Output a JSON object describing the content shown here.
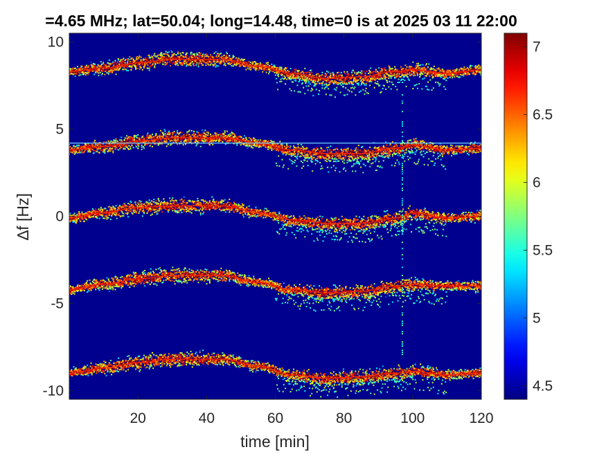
{
  "chart_data": {
    "type": "heatmap",
    "title": "=4.65 MHz;  lat=50.04; long=14.48, time=0 is at 2025 03 11 22:00",
    "xlabel": "time [min]",
    "ylabel": "∆f [Hz]",
    "xlim": [
      0,
      120
    ],
    "ylim": [
      -10.5,
      10.5
    ],
    "xticks": [
      20,
      40,
      60,
      80,
      100,
      120
    ],
    "yticks": [
      -10,
      -5,
      0,
      5,
      10
    ],
    "xtick_labels": [
      "20",
      "40",
      "60",
      "80",
      "100",
      "120"
    ],
    "ytick_labels": [
      "-10",
      "-5",
      "0",
      "5",
      "10"
    ],
    "colorbar": {
      "clim": [
        4.4,
        7.1
      ],
      "ticks": [
        4.5,
        5,
        5.5,
        6,
        6.5,
        7
      ],
      "tick_labels": [
        "4.5",
        "5",
        "5.5",
        "6",
        "6.5",
        "7"
      ],
      "colormap": "jet"
    },
    "background_color": "#00008f",
    "reference_line": {
      "y": 4.2
    },
    "vertical_artifact": {
      "x": 97
    },
    "series": [
      {
        "offset": 8,
        "points": [
          [
            0,
            8.3
          ],
          [
            10,
            8.5
          ],
          [
            20,
            8.8
          ],
          [
            30,
            9.0
          ],
          [
            45,
            9.0
          ],
          [
            55,
            8.6
          ],
          [
            65,
            8.2
          ],
          [
            75,
            7.9
          ],
          [
            85,
            8.0
          ],
          [
            95,
            8.3
          ],
          [
            100,
            8.4
          ],
          [
            110,
            8.2
          ],
          [
            120,
            8.4
          ]
        ]
      },
      {
        "offset": 4,
        "points": [
          [
            0,
            3.8
          ],
          [
            10,
            4.0
          ],
          [
            20,
            4.3
          ],
          [
            30,
            4.5
          ],
          [
            45,
            4.5
          ],
          [
            55,
            4.2
          ],
          [
            65,
            3.8
          ],
          [
            75,
            3.6
          ],
          [
            85,
            3.6
          ],
          [
            95,
            3.9
          ],
          [
            100,
            4.1
          ],
          [
            110,
            3.8
          ],
          [
            120,
            3.9
          ]
        ]
      },
      {
        "offset": 0,
        "points": [
          [
            0,
            -0.1
          ],
          [
            10,
            0.2
          ],
          [
            20,
            0.5
          ],
          [
            30,
            0.6
          ],
          [
            45,
            0.6
          ],
          [
            55,
            0.2
          ],
          [
            65,
            -0.2
          ],
          [
            75,
            -0.4
          ],
          [
            85,
            -0.4
          ],
          [
            95,
            -0.1
          ],
          [
            100,
            0.2
          ],
          [
            110,
            -0.1
          ],
          [
            120,
            0.0
          ]
        ]
      },
      {
        "offset": -4,
        "points": [
          [
            0,
            -4.2
          ],
          [
            10,
            -3.9
          ],
          [
            20,
            -3.6
          ],
          [
            30,
            -3.4
          ],
          [
            45,
            -3.4
          ],
          [
            55,
            -3.8
          ],
          [
            65,
            -4.2
          ],
          [
            75,
            -4.4
          ],
          [
            85,
            -4.3
          ],
          [
            95,
            -4.0
          ],
          [
            100,
            -3.9
          ],
          [
            110,
            -4.0
          ],
          [
            120,
            -4.0
          ]
        ]
      },
      {
        "offset": -8,
        "points": [
          [
            0,
            -9.0
          ],
          [
            10,
            -8.7
          ],
          [
            20,
            -8.4
          ],
          [
            30,
            -8.2
          ],
          [
            45,
            -8.2
          ],
          [
            55,
            -8.6
          ],
          [
            65,
            -9.1
          ],
          [
            75,
            -9.3
          ],
          [
            85,
            -9.2
          ],
          [
            95,
            -9.0
          ],
          [
            100,
            -8.9
          ],
          [
            110,
            -9.1
          ],
          [
            120,
            -9.0
          ]
        ]
      }
    ]
  }
}
